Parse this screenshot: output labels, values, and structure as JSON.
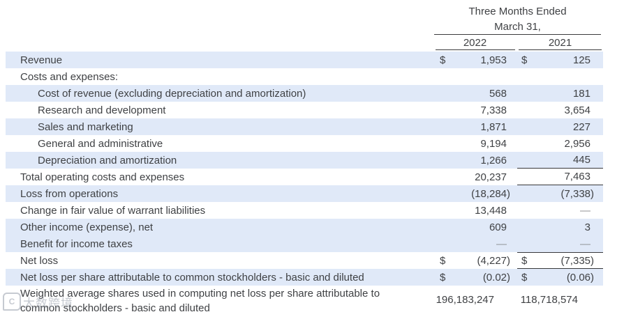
{
  "header": {
    "period_line1": "Three Months Ended",
    "period_line2": "March 31,",
    "col_2022": "2022",
    "col_2021": "2021"
  },
  "colors": {
    "stripe_blue": "#e0e9f8",
    "text": "#3f4144",
    "dash_gray": "#909296",
    "rule": "#3a3a3c"
  },
  "watermark": {
    "logo_icon": "watermark-logo-icon",
    "text": "大数跨境"
  },
  "rows": [
    {
      "label": "Revenue",
      "cur22": "$",
      "v22": "1,953",
      "cur21": "$",
      "v21": "125"
    },
    {
      "label": "Costs and expenses:"
    },
    {
      "label": "Cost of revenue (excluding depreciation and amortization)",
      "v22": "568",
      "v21": "181"
    },
    {
      "label": "Research and development",
      "v22": "7,338",
      "v21": "3,654"
    },
    {
      "label": "Sales and marketing",
      "v22": "1,871",
      "v21": "227"
    },
    {
      "label": "General and administrative",
      "v22": "9,194",
      "v21": "2,956"
    },
    {
      "label": "Depreciation and amortization",
      "v22": "1,266",
      "v21": "445"
    },
    {
      "label": "Total operating costs and expenses",
      "v22": "20,237",
      "v21": "7,463"
    },
    {
      "label": "Loss from operations",
      "v22": "(18,284)",
      "v21": "(7,338)"
    },
    {
      "label": "Change in fair value of warrant liabilities",
      "v22": "13,448",
      "v21": "—"
    },
    {
      "label": "Other income (expense), net",
      "v22": "609",
      "v21": "3"
    },
    {
      "label": "Benefit for income taxes",
      "v22": "—",
      "v21": "—"
    },
    {
      "label": "Net loss",
      "cur22": "$",
      "v22": "(4,227)",
      "cur21": "$",
      "v21": "(7,335)"
    },
    {
      "label": "Net loss per share attributable to common stockholders - basic and diluted",
      "cur22": "$",
      "v22": "(0.02)",
      "cur21": "$",
      "v21": "(0.06)"
    },
    {
      "label": "Weighted average shares used in computing net loss per share attributable to common stockholders - basic and diluted",
      "v22": "196,183,247",
      "v21": "118,718,574"
    }
  ]
}
